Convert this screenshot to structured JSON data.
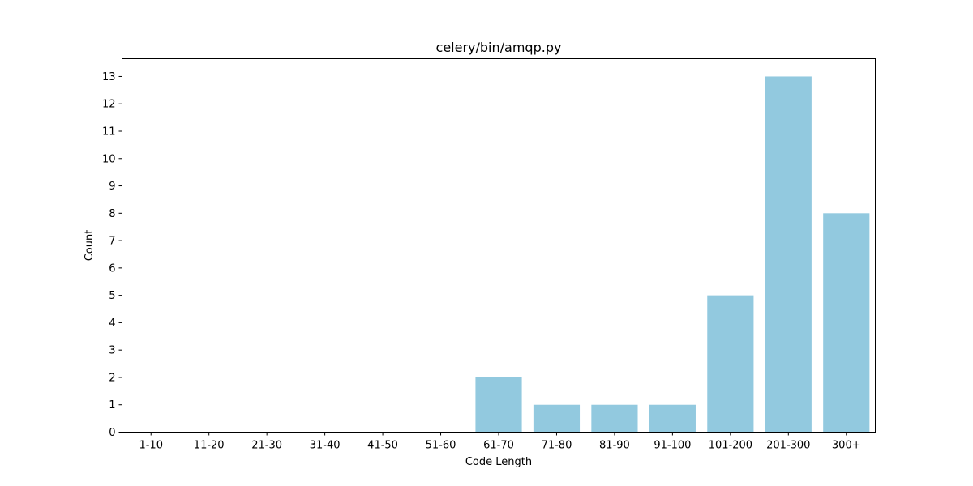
{
  "chart_data": {
    "type": "bar",
    "title": "celery/bin/amqp.py",
    "xlabel": "Code Length",
    "ylabel": "Count",
    "categories": [
      "1-10",
      "11-20",
      "21-30",
      "31-40",
      "41-50",
      "51-60",
      "61-70",
      "71-80",
      "81-90",
      "91-100",
      "101-200",
      "201-300",
      "300+"
    ],
    "values": [
      0,
      0,
      0,
      0,
      0,
      0,
      2,
      1,
      1,
      1,
      5,
      13,
      8
    ],
    "ylim": [
      0,
      13.65
    ],
    "yticks": [
      0,
      1,
      2,
      3,
      4,
      5,
      6,
      7,
      8,
      9,
      10,
      11,
      12,
      13
    ],
    "bar_color": "#92c9df",
    "grid": false,
    "legend": "none"
  }
}
